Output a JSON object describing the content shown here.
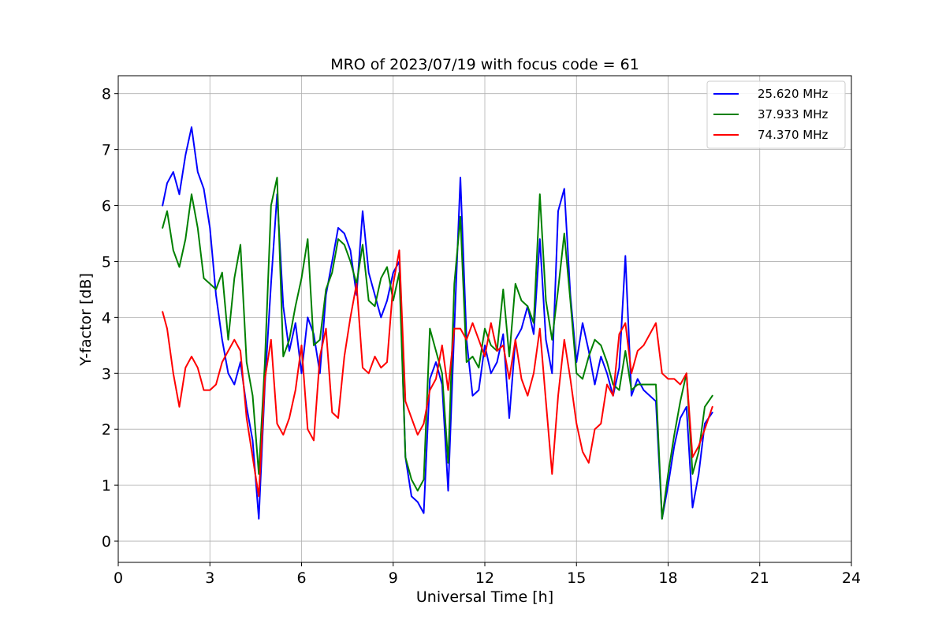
{
  "chart_data": {
    "type": "line",
    "title": "MRO of 2023/07/19 with focus code = 61",
    "xlabel": "Universal Time [h]",
    "ylabel": "Y-factor [dB]",
    "xlim": [
      0,
      24
    ],
    "ylim": [
      -0.38,
      8.32
    ],
    "xticks": [
      0,
      3,
      6,
      9,
      12,
      15,
      18,
      21,
      24
    ],
    "yticks": [
      0,
      1,
      2,
      3,
      4,
      5,
      6,
      7,
      8
    ],
    "xtick_labels": [
      "0",
      "3",
      "6",
      "9",
      "12",
      "15",
      "18",
      "21",
      "24"
    ],
    "ytick_labels": [
      "0",
      "1",
      "2",
      "3",
      "4",
      "5",
      "6",
      "7",
      "8"
    ],
    "grid": true,
    "legend_position": "top-right",
    "series": [
      {
        "name": "25.620 MHz",
        "color": "#0000ff",
        "x": [
          1.45,
          1.6,
          1.8,
          2.0,
          2.2,
          2.4,
          2.6,
          2.8,
          3.0,
          3.2,
          3.4,
          3.6,
          3.8,
          4.0,
          4.2,
          4.4,
          4.6,
          4.8,
          5.0,
          5.2,
          5.4,
          5.6,
          5.8,
          6.0,
          6.2,
          6.4,
          6.6,
          6.8,
          7.0,
          7.2,
          7.4,
          7.6,
          7.8,
          8.0,
          8.2,
          8.4,
          8.6,
          8.8,
          9.0,
          9.2,
          9.4,
          9.6,
          9.8,
          10.0,
          10.2,
          10.4,
          10.6,
          10.8,
          11.0,
          11.2,
          11.4,
          11.6,
          11.8,
          12.0,
          12.2,
          12.4,
          12.6,
          12.8,
          13.0,
          13.2,
          13.4,
          13.6,
          13.8,
          14.0,
          14.2,
          14.4,
          14.6,
          14.8,
          15.0,
          15.2,
          15.4,
          15.6,
          15.8,
          16.0,
          16.2,
          16.4,
          16.6,
          16.8,
          17.0,
          17.2,
          17.4,
          17.6,
          17.8,
          18.0,
          18.2,
          18.4,
          18.6,
          18.8,
          19.0,
          19.2,
          19.45
        ],
        "y": [
          6.0,
          6.4,
          6.6,
          6.2,
          6.9,
          7.4,
          6.6,
          6.3,
          5.6,
          4.4,
          3.6,
          3.0,
          2.8,
          3.2,
          2.4,
          1.8,
          0.4,
          2.8,
          4.6,
          6.2,
          4.2,
          3.4,
          3.9,
          3.0,
          4.0,
          3.7,
          3.0,
          4.4,
          5.0,
          5.6,
          5.5,
          5.2,
          4.4,
          5.9,
          4.8,
          4.4,
          4.0,
          4.3,
          4.8,
          5.0,
          1.5,
          0.8,
          0.7,
          0.5,
          2.9,
          3.2,
          2.8,
          0.9,
          3.8,
          6.5,
          3.6,
          2.6,
          2.7,
          3.5,
          3.0,
          3.2,
          3.7,
          2.2,
          3.6,
          3.8,
          4.2,
          3.7,
          5.4,
          3.6,
          3.0,
          5.9,
          6.3,
          4.4,
          3.2,
          3.9,
          3.4,
          2.8,
          3.3,
          3.0,
          2.6,
          3.1,
          5.1,
          2.6,
          2.9,
          2.7,
          2.6,
          2.5,
          0.4,
          1.0,
          1.7,
          2.2,
          2.4,
          0.6,
          1.2,
          2.1,
          2.3
        ]
      },
      {
        "name": "37.933 MHz",
        "color": "#008000",
        "x": [
          1.45,
          1.6,
          1.8,
          2.0,
          2.2,
          2.4,
          2.6,
          2.8,
          3.0,
          3.2,
          3.4,
          3.6,
          3.8,
          4.0,
          4.2,
          4.4,
          4.6,
          4.8,
          5.0,
          5.2,
          5.4,
          5.6,
          5.8,
          6.0,
          6.2,
          6.4,
          6.6,
          6.8,
          7.0,
          7.2,
          7.4,
          7.6,
          7.8,
          8.0,
          8.2,
          8.4,
          8.6,
          8.8,
          9.0,
          9.2,
          9.4,
          9.6,
          9.8,
          10.0,
          10.2,
          10.4,
          10.6,
          10.8,
          11.0,
          11.2,
          11.4,
          11.6,
          11.8,
          12.0,
          12.2,
          12.4,
          12.6,
          12.8,
          13.0,
          13.2,
          13.4,
          13.6,
          13.8,
          14.0,
          14.2,
          14.4,
          14.6,
          14.8,
          15.0,
          15.2,
          15.4,
          15.6,
          15.8,
          16.0,
          16.2,
          16.4,
          16.6,
          16.8,
          17.0,
          17.2,
          17.4,
          17.6,
          17.8,
          18.0,
          18.2,
          18.4,
          18.6,
          18.8,
          19.0,
          19.2,
          19.45
        ],
        "y": [
          5.6,
          5.9,
          5.2,
          4.9,
          5.4,
          6.2,
          5.6,
          4.7,
          4.6,
          4.5,
          4.8,
          3.6,
          4.7,
          5.3,
          3.2,
          2.6,
          1.2,
          3.2,
          6.0,
          6.5,
          3.3,
          3.6,
          4.2,
          4.7,
          5.4,
          3.5,
          3.6,
          4.5,
          4.8,
          5.4,
          5.3,
          5.0,
          4.6,
          5.3,
          4.3,
          4.2,
          4.7,
          4.9,
          4.3,
          4.8,
          1.5,
          1.1,
          0.9,
          1.1,
          3.8,
          3.4,
          3.0,
          1.4,
          4.6,
          5.8,
          3.2,
          3.3,
          3.1,
          3.8,
          3.5,
          3.4,
          4.5,
          3.3,
          4.6,
          4.3,
          4.2,
          3.9,
          6.2,
          4.3,
          3.6,
          4.5,
          5.5,
          4.3,
          3.0,
          2.9,
          3.3,
          3.6,
          3.5,
          3.2,
          2.8,
          2.7,
          3.4,
          2.7,
          2.8,
          2.8,
          2.8,
          2.8,
          0.4,
          1.2,
          1.9,
          2.5,
          3.0,
          1.2,
          1.6,
          2.4,
          2.6
        ]
      },
      {
        "name": "74.370 MHz",
        "color": "#ff0000",
        "x": [
          1.45,
          1.6,
          1.8,
          2.0,
          2.2,
          2.4,
          2.6,
          2.8,
          3.0,
          3.2,
          3.4,
          3.6,
          3.8,
          4.0,
          4.2,
          4.4,
          4.6,
          4.8,
          5.0,
          5.2,
          5.4,
          5.6,
          5.8,
          6.0,
          6.2,
          6.4,
          6.6,
          6.8,
          7.0,
          7.2,
          7.4,
          7.6,
          7.8,
          8.0,
          8.2,
          8.4,
          8.6,
          8.8,
          9.0,
          9.2,
          9.4,
          9.6,
          9.8,
          10.0,
          10.2,
          10.4,
          10.6,
          10.8,
          11.0,
          11.2,
          11.4,
          11.6,
          11.8,
          12.0,
          12.2,
          12.4,
          12.6,
          12.8,
          13.0,
          13.2,
          13.4,
          13.6,
          13.8,
          14.0,
          14.2,
          14.4,
          14.6,
          14.8,
          15.0,
          15.2,
          15.4,
          15.6,
          15.8,
          16.0,
          16.2,
          16.4,
          16.6,
          16.8,
          17.0,
          17.2,
          17.4,
          17.6,
          17.8,
          18.0,
          18.2,
          18.4,
          18.6,
          18.8,
          19.0,
          19.2,
          19.45
        ],
        "y": [
          4.1,
          3.8,
          3.0,
          2.4,
          3.1,
          3.3,
          3.1,
          2.7,
          2.7,
          2.8,
          3.2,
          3.4,
          3.6,
          3.4,
          2.2,
          1.5,
          0.8,
          2.9,
          3.6,
          2.1,
          1.9,
          2.2,
          2.7,
          3.5,
          2.0,
          1.8,
          3.3,
          3.8,
          2.3,
          2.2,
          3.3,
          4.0,
          4.6,
          3.1,
          3.0,
          3.3,
          3.1,
          3.2,
          4.6,
          5.2,
          2.5,
          2.2,
          1.9,
          2.1,
          2.7,
          2.9,
          3.5,
          2.7,
          3.8,
          3.8,
          3.6,
          3.9,
          3.6,
          3.3,
          3.9,
          3.4,
          3.5,
          2.9,
          3.6,
          2.9,
          2.6,
          3.0,
          3.8,
          2.5,
          1.2,
          2.6,
          3.6,
          2.9,
          2.1,
          1.6,
          1.4,
          2.0,
          2.1,
          2.8,
          2.6,
          3.7,
          3.9,
          3.0,
          3.4,
          3.5,
          3.7,
          3.9,
          3.0,
          2.9,
          2.9,
          2.8,
          3.0,
          1.5,
          1.7,
          2.0,
          2.4
        ]
      }
    ]
  }
}
